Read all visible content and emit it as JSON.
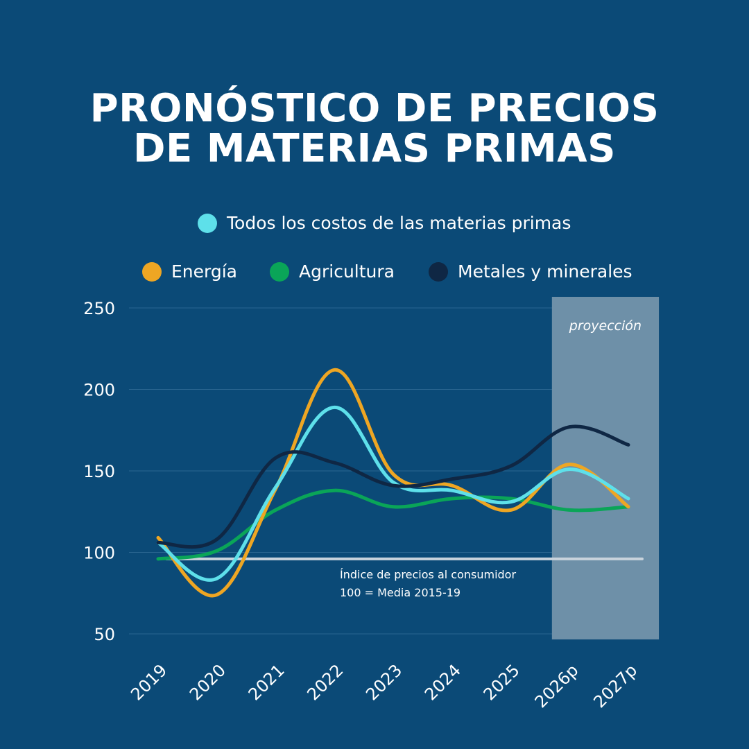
{
  "title": {
    "line1": "PRONÓSTICO DE PRECIOS",
    "line2": "DE MATERIAS PRIMAS"
  },
  "chart_data": {
    "type": "line",
    "x": [
      "2019",
      "2020",
      "2021",
      "2022",
      "2023",
      "2024",
      "2025",
      "2026p",
      "2027p"
    ],
    "ylim": [
      50,
      250
    ],
    "yticks": [
      250,
      200,
      150,
      100,
      50
    ],
    "grid": true,
    "legend_position": "top",
    "series": [
      {
        "name": "Todos los costos de las materias primas",
        "color": "#5ee0ea",
        "values": [
          106,
          84,
          140,
          189,
          143,
          138,
          131,
          151,
          133
        ]
      },
      {
        "name": "Energía",
        "color": "#eea623",
        "values": [
          109,
          74,
          139,
          212,
          148,
          141,
          126,
          154,
          128
        ]
      },
      {
        "name": "Agricultura",
        "color": "#0aa558",
        "values": [
          96,
          101,
          126,
          138,
          128,
          133,
          133,
          126,
          128
        ]
      },
      {
        "name": "Metales y minerales",
        "color": "#0f2744",
        "values": [
          106,
          108,
          158,
          155,
          141,
          145,
          153,
          177,
          166
        ]
      }
    ],
    "reference_line": {
      "value": 96,
      "label_line1": "Índice de precios al consumidor",
      "label_line2": "100 = Media 2015-19",
      "color": "#c9d3dc"
    },
    "projection": {
      "label": "proyección",
      "from": "2026p",
      "to": "2027p",
      "color": "#6e90a8"
    }
  }
}
